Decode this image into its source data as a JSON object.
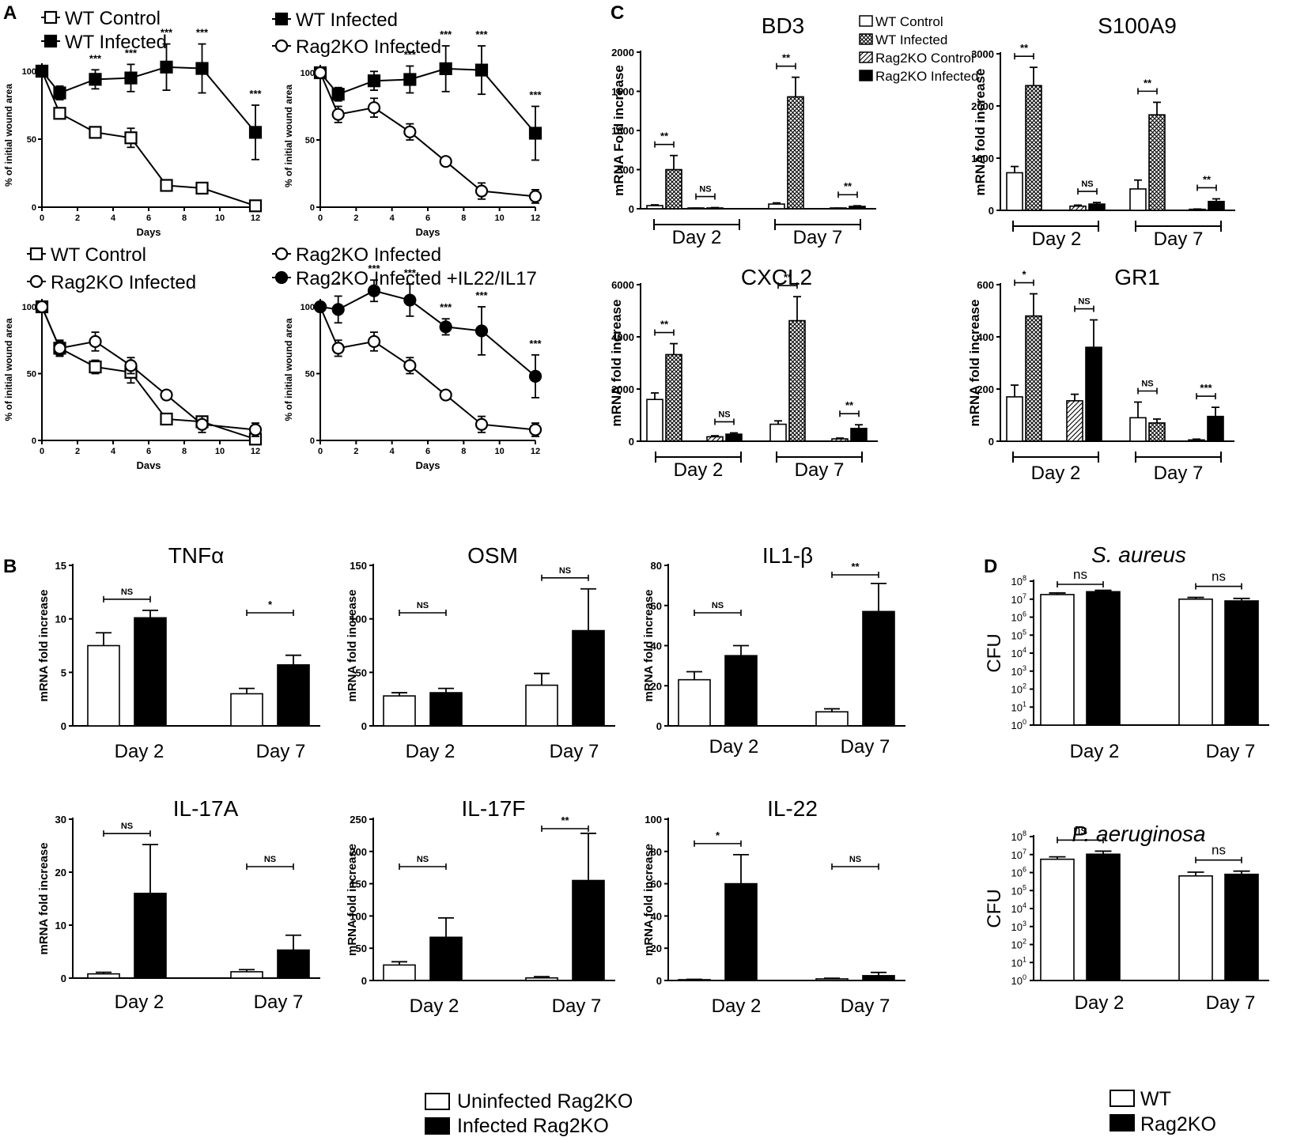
{
  "figure": {
    "panel_labels": [
      "A",
      "B",
      "C",
      "D"
    ],
    "b_legend": [
      "Uninfected Rag2KO",
      "Infected Rag2KO"
    ],
    "d_legend": [
      "WT",
      "Rag2KO"
    ]
  },
  "chart_data": [
    {
      "id": "A1",
      "type": "line",
      "title": "",
      "xlabel": "Days",
      "ylabel": "% of initial wound area",
      "xlim": [
        0,
        12
      ],
      "ylim": [
        0,
        100
      ],
      "xticks": [
        0,
        2,
        4,
        6,
        8,
        10,
        12
      ],
      "yticks": [
        0,
        50,
        100
      ],
      "series": [
        {
          "name": "WT Control",
          "marker": "square-open",
          "x": [
            0,
            1,
            3,
            5,
            7,
            9,
            12
          ],
          "y": [
            100,
            69,
            55,
            51,
            16,
            14,
            1
          ],
          "err": [
            0,
            4,
            4,
            7,
            2,
            2,
            1
          ]
        },
        {
          "name": "WT Infected",
          "marker": "square-filled",
          "x": [
            0,
            1,
            3,
            5,
            7,
            9,
            12
          ],
          "y": [
            100,
            84,
            94,
            95,
            103,
            102,
            55
          ],
          "err": [
            0,
            5,
            7,
            10,
            17,
            18,
            20
          ]
        }
      ],
      "annotations": [
        {
          "x": 3,
          "text": "***"
        },
        {
          "x": 5,
          "text": "***"
        },
        {
          "x": 7,
          "text": "***"
        },
        {
          "x": 9,
          "text": "***"
        },
        {
          "x": 12,
          "text": "***"
        }
      ]
    },
    {
      "id": "A2",
      "type": "line",
      "title": "",
      "xlabel": "Days",
      "ylabel": "% of initial wound area",
      "xlim": [
        0,
        12
      ],
      "ylim": [
        0,
        100
      ],
      "xticks": [
        0,
        2,
        4,
        6,
        8,
        10,
        12
      ],
      "yticks": [
        0,
        50,
        100
      ],
      "series": [
        {
          "name": "WT Infected",
          "marker": "square-filled",
          "x": [
            0,
            1,
            3,
            5,
            7,
            9,
            12
          ],
          "y": [
            100,
            84,
            94,
            95,
            103,
            102,
            55
          ],
          "err": [
            0,
            5,
            7,
            10,
            17,
            18,
            20
          ]
        },
        {
          "name": "Rag2KO Infected",
          "marker": "circle-open",
          "x": [
            0,
            1,
            3,
            5,
            7,
            9,
            12
          ],
          "y": [
            100,
            69,
            74,
            56,
            34,
            12,
            8
          ],
          "err": [
            0,
            6,
            7,
            6,
            2,
            6,
            5
          ]
        }
      ],
      "annotations": [
        {
          "x": 5,
          "text": "***"
        },
        {
          "x": 7,
          "text": "***"
        },
        {
          "x": 9,
          "text": "***"
        },
        {
          "x": 12,
          "text": "***"
        }
      ]
    },
    {
      "id": "A3",
      "type": "line",
      "title": "",
      "xlabel": "Davs",
      "ylabel": "% of initial wound area",
      "xlim": [
        0,
        12
      ],
      "ylim": [
        0,
        100
      ],
      "xticks": [
        0,
        2,
        4,
        6,
        8,
        10,
        12
      ],
      "yticks": [
        0,
        50,
        100
      ],
      "series": [
        {
          "name": "WT Control",
          "marker": "square-open",
          "x": [
            0,
            1,
            3,
            5,
            7,
            9,
            12
          ],
          "y": [
            100,
            69,
            55,
            51,
            16,
            14,
            1
          ],
          "err": [
            0,
            5,
            5,
            8,
            3,
            3,
            1
          ]
        },
        {
          "name": "Rag2KO Infected",
          "marker": "circle-open",
          "x": [
            0,
            1,
            3,
            5,
            7,
            9,
            12
          ],
          "y": [
            100,
            69,
            74,
            56,
            34,
            12,
            8
          ],
          "err": [
            0,
            6,
            7,
            6,
            2,
            6,
            5
          ]
        }
      ],
      "annotations": []
    },
    {
      "id": "A4",
      "type": "line",
      "title": "",
      "xlabel": "Days",
      "ylabel": "% of initial wound area",
      "xlim": [
        0,
        12
      ],
      "ylim": [
        0,
        100
      ],
      "xticks": [
        0,
        2,
        4,
        6,
        8,
        10,
        12
      ],
      "yticks": [
        0,
        50,
        100
      ],
      "series": [
        {
          "name": "Rag2KO Infected",
          "marker": "circle-open",
          "x": [
            0,
            1,
            3,
            5,
            7,
            9,
            12
          ],
          "y": [
            100,
            69,
            74,
            56,
            34,
            12,
            8
          ],
          "err": [
            0,
            6,
            7,
            6,
            2,
            6,
            5
          ]
        },
        {
          "name": "Rag2KO Infected +IL22/IL17",
          "marker": "circle-filled",
          "x": [
            0,
            1,
            3,
            5,
            7,
            9,
            12
          ],
          "y": [
            100,
            98,
            112,
            105,
            85,
            82,
            48
          ],
          "err": [
            0,
            10,
            8,
            12,
            6,
            18,
            16
          ]
        }
      ],
      "annotations": [
        {
          "x": 1,
          "text": "*"
        },
        {
          "x": 3,
          "text": "***"
        },
        {
          "x": 5,
          "text": "***"
        },
        {
          "x": 7,
          "text": "***"
        },
        {
          "x": 9,
          "text": "***"
        },
        {
          "x": 12,
          "text": "***"
        }
      ]
    },
    {
      "id": "C_BD3",
      "type": "bar",
      "title": "BD3",
      "ylabel": "mRNA Fold increase",
      "ylim": [
        0,
        2000
      ],
      "yticks": [
        0,
        500,
        1000,
        1500,
        2000
      ],
      "groups": [
        "Day 2",
        "Day 7"
      ],
      "series": [
        "WT Control",
        "WT Infected",
        "Rag2KO Control",
        "Rag2KO Infected"
      ],
      "values": [
        [
          40,
          500,
          5,
          10
        ],
        [
          60,
          1430,
          5,
          30
        ]
      ],
      "err": [
        [
          10,
          180,
          3,
          5
        ],
        [
          15,
          250,
          3,
          8
        ]
      ],
      "sig": [
        {
          "group": 0,
          "pair": [
            0,
            1
          ],
          "text": "**"
        },
        {
          "group": 0,
          "pair": [
            2,
            3
          ],
          "text": "NS"
        },
        {
          "group": 1,
          "pair": [
            0,
            1
          ],
          "text": "**"
        },
        {
          "group": 1,
          "pair": [
            2,
            3
          ],
          "text": "**"
        }
      ]
    },
    {
      "id": "C_S100A9",
      "type": "bar",
      "title": "S100A9",
      "ylabel": "mRNA fold increase",
      "ylim": [
        0,
        3000
      ],
      "yticks": [
        0,
        1000,
        2000,
        3000
      ],
      "groups": [
        "Day 2",
        "Day 7"
      ],
      "series": [
        "WT Control",
        "WT Infected",
        "Rag2KO Control",
        "Rag2KO Infected"
      ],
      "values": [
        [
          720,
          2390,
          80,
          120
        ],
        [
          410,
          1830,
          20,
          170
        ]
      ],
      "err": [
        [
          120,
          350,
          20,
          30
        ],
        [
          170,
          240,
          5,
          50
        ]
      ],
      "sig": [
        {
          "group": 0,
          "pair": [
            0,
            1
          ],
          "text": "**"
        },
        {
          "group": 0,
          "pair": [
            2,
            3
          ],
          "text": "NS"
        },
        {
          "group": 1,
          "pair": [
            0,
            1
          ],
          "text": "**"
        },
        {
          "group": 1,
          "pair": [
            2,
            3
          ],
          "text": "**"
        }
      ]
    },
    {
      "id": "C_CXCL2",
      "type": "bar",
      "title": "CXCL2",
      "ylabel": "mRNA fold increase",
      "ylim": [
        0,
        6000
      ],
      "yticks": [
        0,
        2000,
        4000,
        6000
      ],
      "groups": [
        "Day 2",
        "Day 7"
      ],
      "series": [
        "WT Control",
        "WT Infected",
        "Rag2KO Control",
        "Rag2KO Infected"
      ],
      "values": [
        [
          1600,
          3320,
          170,
          270
        ],
        [
          650,
          4620,
          90,
          490
        ]
      ],
      "err": [
        [
          250,
          420,
          40,
          50
        ],
        [
          130,
          920,
          30,
          140
        ]
      ],
      "sig": [
        {
          "group": 0,
          "pair": [
            0,
            1
          ],
          "text": "**"
        },
        {
          "group": 0,
          "pair": [
            2,
            3
          ],
          "text": "NS"
        },
        {
          "group": 1,
          "pair": [
            0,
            1
          ],
          "text": "**"
        },
        {
          "group": 1,
          "pair": [
            2,
            3
          ],
          "text": "**"
        }
      ]
    },
    {
      "id": "C_GR1",
      "type": "bar",
      "title": "GR1",
      "ylabel": "mRNA fold increase",
      "ylim": [
        0,
        600
      ],
      "yticks": [
        0,
        200,
        400,
        600
      ],
      "groups": [
        "Day 2",
        "Day 7"
      ],
      "series": [
        "WT Control",
        "WT Infected",
        "Rag2KO Control",
        "Rag2KO Infected"
      ],
      "values": [
        [
          170,
          480,
          155,
          360
        ],
        [
          90,
          70,
          5,
          95
        ]
      ],
      "err": [
        [
          45,
          85,
          25,
          105
        ],
        [
          60,
          15,
          3,
          35
        ]
      ],
      "sig": [
        {
          "group": 0,
          "pair": [
            0,
            1
          ],
          "text": "*"
        },
        {
          "group": 0,
          "pair": [
            2,
            3
          ],
          "text": "NS"
        },
        {
          "group": 1,
          "pair": [
            0,
            1
          ],
          "text": "NS"
        },
        {
          "group": 1,
          "pair": [
            2,
            3
          ],
          "text": "***"
        }
      ]
    },
    {
      "id": "B_TNFa",
      "type": "bar",
      "title": "TNFα",
      "ylabel": "mRNA fold increase",
      "ylim": [
        0,
        15
      ],
      "yticks": [
        0,
        5,
        10,
        15
      ],
      "groups": [
        "Day 2",
        "Day 7"
      ],
      "series": [
        "Uninfected Rag2KO",
        "Infected Rag2KO"
      ],
      "values": [
        [
          7.5,
          10.1
        ],
        [
          3.0,
          5.7
        ]
      ],
      "err": [
        [
          1.2,
          0.7
        ],
        [
          0.5,
          0.9
        ]
      ],
      "sig": [
        {
          "group": 0,
          "text": "NS"
        },
        {
          "group": 1,
          "text": "*"
        }
      ]
    },
    {
      "id": "B_OSM",
      "type": "bar",
      "title": "OSM",
      "ylabel": "mRNA fold increase",
      "ylim": [
        0,
        150
      ],
      "yticks": [
        0,
        50,
        100,
        150
      ],
      "groups": [
        "Day 2",
        "Day 7"
      ],
      "series": [
        "Uninfected Rag2KO",
        "Infected Rag2KO"
      ],
      "values": [
        [
          28,
          31
        ],
        [
          38,
          89
        ]
      ],
      "err": [
        [
          3,
          4
        ],
        [
          11,
          39
        ]
      ],
      "sig": [
        {
          "group": 0,
          "text": "NS"
        },
        {
          "group": 1,
          "text": "NS"
        }
      ]
    },
    {
      "id": "B_IL1b",
      "type": "bar",
      "title": "IL1-β",
      "ylabel": "mRNA fold increase",
      "ylim": [
        0,
        80
      ],
      "yticks": [
        0,
        20,
        40,
        60,
        80
      ],
      "groups": [
        "Day 2",
        "Day 7"
      ],
      "series": [
        "Uninfected Rag2KO",
        "Infected Rag2KO"
      ],
      "values": [
        [
          23,
          35
        ],
        [
          7,
          57
        ]
      ],
      "err": [
        [
          4,
          5
        ],
        [
          1.5,
          14
        ]
      ],
      "sig": [
        {
          "group": 0,
          "text": "NS"
        },
        {
          "group": 1,
          "text": "**"
        }
      ]
    },
    {
      "id": "B_IL17A",
      "type": "bar",
      "title": "IL-17A",
      "ylabel": "mRNA fold increase",
      "ylim": [
        0,
        30
      ],
      "yticks": [
        0,
        10,
        20,
        30
      ],
      "groups": [
        "Day 2",
        "Day 7"
      ],
      "series": [
        "Uninfected Rag2KO",
        "Infected Rag2KO"
      ],
      "values": [
        [
          0.8,
          16
        ],
        [
          1.2,
          5.3
        ]
      ],
      "err": [
        [
          0.3,
          9.2
        ],
        [
          0.4,
          2.8
        ]
      ],
      "sig": [
        {
          "group": 0,
          "text": "NS"
        },
        {
          "group": 1,
          "text": "NS"
        }
      ]
    },
    {
      "id": "B_IL17F",
      "type": "bar",
      "title": "IL-17F",
      "ylabel": "mRNA fold increase",
      "ylim": [
        0,
        250
      ],
      "yticks": [
        0,
        50,
        100,
        150,
        200,
        250
      ],
      "groups": [
        "Day 2",
        "Day 7"
      ],
      "series": [
        "Uninfected Rag2KO",
        "Infected Rag2KO"
      ],
      "values": [
        [
          24,
          67
        ],
        [
          4,
          155
        ]
      ],
      "err": [
        [
          5,
          30
        ],
        [
          2,
          73
        ]
      ],
      "sig": [
        {
          "group": 0,
          "text": "NS"
        },
        {
          "group": 1,
          "text": "**"
        }
      ]
    },
    {
      "id": "B_IL22",
      "type": "bar",
      "title": "IL-22",
      "ylabel": "mRNA fold increase",
      "ylim": [
        0,
        100
      ],
      "yticks": [
        0,
        20,
        40,
        60,
        80,
        100
      ],
      "groups": [
        "Day 2",
        "Day 7"
      ],
      "series": [
        "Uninfected Rag2KO",
        "Infected Rag2KO"
      ],
      "values": [
        [
          0.5,
          60
        ],
        [
          1,
          3
        ]
      ],
      "err": [
        [
          0.2,
          18
        ],
        [
          0.4,
          2
        ]
      ],
      "sig": [
        {
          "group": 0,
          "text": "*"
        },
        {
          "group": 1,
          "text": "NS"
        }
      ]
    },
    {
      "id": "D_Saureus",
      "type": "bar",
      "title": "S. aureus",
      "ylabel": "CFU",
      "yscale": "log",
      "ylim": [
        1,
        100000000
      ],
      "ytick_exponents": [
        0,
        1,
        2,
        3,
        4,
        5,
        6,
        7,
        8
      ],
      "groups": [
        "Day 2",
        "Day 7"
      ],
      "series": [
        "WT",
        "Rag2KO"
      ],
      "values": [
        [
          18000000,
          26000000
        ],
        [
          10000000,
          8000000
        ]
      ],
      "err": [
        [
          4000000,
          5000000
        ],
        [
          2500000,
          3000000
        ]
      ],
      "sig": [
        {
          "group": 0,
          "text": "ns"
        },
        {
          "group": 1,
          "text": "ns"
        }
      ]
    },
    {
      "id": "D_Paeruginosa",
      "type": "bar",
      "title": "P. aeruginosa",
      "ylabel": "CFU",
      "yscale": "log",
      "ylim": [
        1,
        100000000
      ],
      "ytick_exponents": [
        0,
        1,
        2,
        3,
        4,
        5,
        6,
        7,
        8
      ],
      "groups": [
        "Day 2",
        "Day 7"
      ],
      "series": [
        "WT",
        "Rag2KO"
      ],
      "values": [
        [
          5500000,
          10500000
        ],
        [
          650000,
          800000
        ]
      ],
      "err": [
        [
          2000000,
          5000000
        ],
        [
          400000,
          400000
        ]
      ],
      "sig": [
        {
          "group": 0,
          "text": "ns"
        },
        {
          "group": 1,
          "text": "ns"
        }
      ]
    }
  ]
}
